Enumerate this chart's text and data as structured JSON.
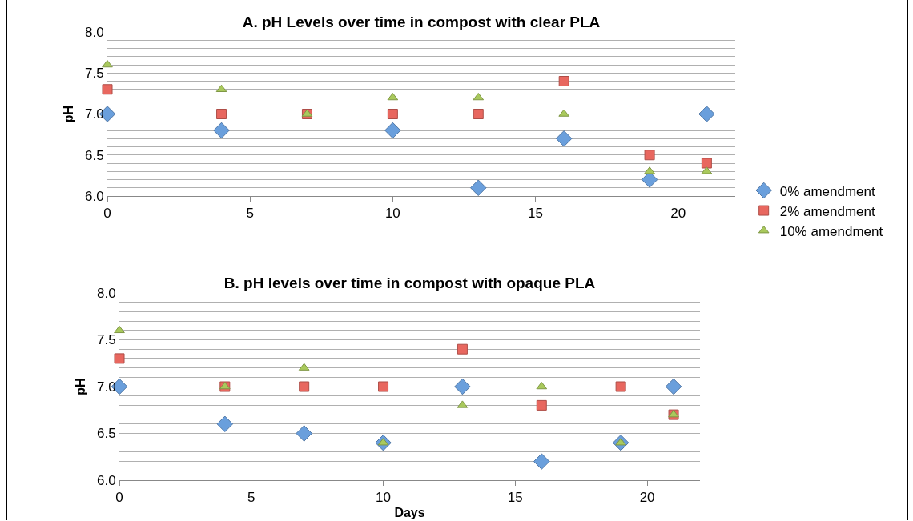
{
  "chart_data": [
    {
      "type": "scatter",
      "title": "A. pH Levels over time in compost with clear PLA",
      "ylabel": "pH",
      "x": [
        0,
        4,
        7,
        10,
        13,
        16,
        19,
        21
      ],
      "series": [
        {
          "name": "0% amendment",
          "color": "#6a9fdc",
          "marker": "diamond",
          "values": [
            7.0,
            6.8,
            null,
            6.8,
            6.1,
            6.7,
            6.2,
            7.0
          ]
        },
        {
          "name": "2% amendment",
          "color": "#e8675f",
          "marker": "square",
          "values": [
            7.3,
            7.0,
            7.0,
            7.0,
            7.0,
            7.4,
            6.5,
            6.4
          ]
        },
        {
          "name": "10% amendment",
          "color": "#a9c95c",
          "marker": "triangle",
          "values": [
            7.6,
            7.3,
            7.0,
            7.2,
            7.2,
            7.0,
            6.3,
            6.3
          ]
        }
      ],
      "xlim": [
        0,
        22
      ],
      "xticks": [
        0,
        5,
        10,
        15,
        20
      ],
      "ylim": [
        6.0,
        8.0
      ],
      "yticks": [
        {
          "value": 6.0,
          "label": "6.0"
        },
        {
          "value": 6.1,
          "label": null
        },
        {
          "value": 6.2,
          "label": null
        },
        {
          "value": 6.3,
          "label": null
        },
        {
          "value": 6.4,
          "label": null
        },
        {
          "value": 6.5,
          "label": "6.5"
        },
        {
          "value": 6.6,
          "label": null
        },
        {
          "value": 6.7,
          "label": null
        },
        {
          "value": 6.8,
          "label": null
        },
        {
          "value": 6.9,
          "label": null
        },
        {
          "value": 7.0,
          "label": "7.0"
        },
        {
          "value": 7.1,
          "label": null
        },
        {
          "value": 7.2,
          "label": null
        },
        {
          "value": 7.3,
          "label": null
        },
        {
          "value": 7.4,
          "label": null
        },
        {
          "value": 7.5,
          "label": "7.5"
        },
        {
          "value": 7.6,
          "label": null
        },
        {
          "value": 7.7,
          "label": null
        },
        {
          "value": 7.8,
          "label": null
        },
        {
          "value": 7.9,
          "label": null
        },
        {
          "value": 8.0,
          "label": "8.0"
        }
      ],
      "grid": "y",
      "legend": "bottom right"
    },
    {
      "type": "scatter",
      "title": "B. pH levels over time in compost with opaque PLA",
      "ylabel": "pH",
      "xlabel": "Days",
      "x": [
        0,
        4,
        7,
        10,
        13,
        16,
        19,
        21
      ],
      "series": [
        {
          "color": "#6a9fdc",
          "marker": "diamond",
          "values": [
            7.0,
            6.6,
            6.5,
            6.4,
            7.0,
            6.2,
            6.4,
            7.0
          ]
        },
        {
          "color": "#e8675f",
          "marker": "square",
          "values": [
            7.3,
            7.0,
            7.0,
            7.0,
            7.4,
            6.8,
            7.0,
            6.7
          ]
        },
        {
          "color": "#a9c95c",
          "marker": "triangle",
          "values": [
            7.6,
            7.0,
            7.2,
            6.4,
            6.8,
            7.0,
            6.4,
            6.7
          ]
        }
      ],
      "xlim": [
        0,
        22
      ],
      "xticks": [
        0,
        5,
        10,
        15,
        20
      ],
      "ylim": [
        6.0,
        8.0
      ],
      "yticks": [
        {
          "value": 6.0,
          "label": "6.0"
        },
        {
          "value": 6.1,
          "label": null
        },
        {
          "value": 6.2,
          "label": null
        },
        {
          "value": 6.3,
          "label": null
        },
        {
          "value": 6.4,
          "label": null
        },
        {
          "value": 6.5,
          "label": "6.5"
        },
        {
          "value": 6.6,
          "label": null
        },
        {
          "value": 6.7,
          "label": null
        },
        {
          "value": 6.8,
          "label": null
        },
        {
          "value": 6.9,
          "label": null
        },
        {
          "value": 7.0,
          "label": "7.0"
        },
        {
          "value": 7.1,
          "label": null
        },
        {
          "value": 7.2,
          "label": null
        },
        {
          "value": 7.3,
          "label": null
        },
        {
          "value": 7.4,
          "label": null
        },
        {
          "value": 7.5,
          "label": "7.5"
        },
        {
          "value": 7.6,
          "label": null
        },
        {
          "value": 7.7,
          "label": null
        },
        {
          "value": 7.8,
          "label": null
        },
        {
          "value": 7.9,
          "label": null
        },
        {
          "value": 8.0,
          "label": "8.0"
        }
      ],
      "grid": "y"
    }
  ]
}
